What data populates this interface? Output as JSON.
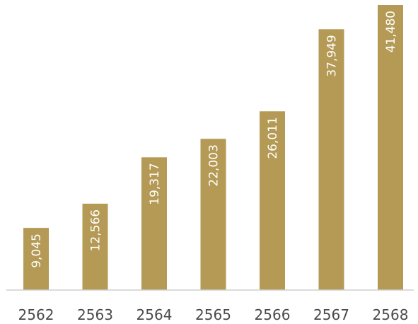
{
  "chart_data": {
    "type": "bar",
    "categories": [
      "2562",
      "2563",
      "2564",
      "2565",
      "2566",
      "2567",
      "2568"
    ],
    "values": [
      9045,
      12566,
      19317,
      22003,
      26011,
      37949,
      41480
    ],
    "value_labels": [
      "9,045",
      "12,566",
      "19,317",
      "22,003",
      "26,011",
      "37,949",
      "41,480"
    ],
    "ylim": [
      0,
      41480
    ],
    "grid": false,
    "legend": "none",
    "value_label_orientation": "vertical",
    "colors": {
      "bar": "#b59a56",
      "baseline": "#cfcfcf",
      "value_label": "#ffffff",
      "category_label": "#4a4a4a"
    }
  }
}
